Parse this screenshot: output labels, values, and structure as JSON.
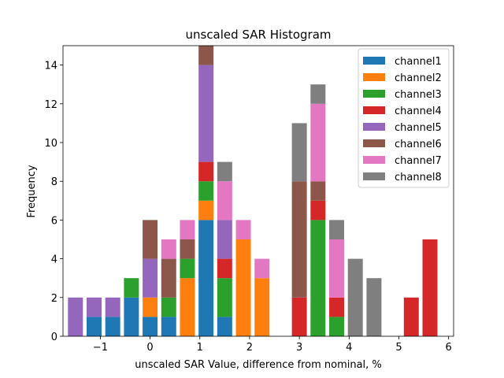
{
  "chart_data": {
    "type": "bar",
    "stacked": true,
    "title": "unscaled SAR Histogram",
    "xlabel": "unscaled SAR Value, difference from nominal, %",
    "ylabel": "Frequency",
    "xlim": [
      -1.75,
      6.1
    ],
    "ylim": [
      0,
      15
    ],
    "xticks": [
      -1,
      0,
      1,
      2,
      3,
      4,
      5,
      6
    ],
    "xtick_labels": [
      "−1",
      "0",
      "1",
      "2",
      "3",
      "4",
      "5",
      "6"
    ],
    "yticks": [
      0,
      2,
      4,
      6,
      8,
      10,
      12,
      14
    ],
    "bar_width": 0.3,
    "legend_position": "top-right",
    "x": [
      -1.5,
      -1.125,
      -0.75,
      -0.375,
      0,
      0.375,
      0.75,
      1.125,
      1.5,
      1.875,
      2.25,
      2.625,
      3,
      3.375,
      3.75,
      4.125,
      4.5,
      4.875,
      5.25,
      5.625
    ],
    "series": [
      {
        "name": "channel1",
        "color": "#1f77b4",
        "values": [
          0,
          1,
          1,
          2,
          1,
          1,
          0,
          6,
          1,
          0,
          0,
          0,
          0,
          0,
          0,
          0,
          0,
          0,
          0,
          0
        ]
      },
      {
        "name": "channel2",
        "color": "#ff7f0e",
        "values": [
          0,
          0,
          0,
          0,
          1,
          0,
          3,
          1,
          0,
          5,
          3,
          0,
          0,
          0,
          0,
          0,
          0,
          0,
          0,
          0
        ]
      },
      {
        "name": "channel3",
        "color": "#2ca02c",
        "values": [
          0,
          0,
          0,
          1,
          0,
          1,
          1,
          1,
          2,
          0,
          0,
          0,
          0,
          6,
          1,
          0,
          0,
          0,
          0,
          0
        ]
      },
      {
        "name": "channel4",
        "color": "#d62728",
        "values": [
          0,
          0,
          0,
          0,
          0,
          0,
          0,
          1,
          1,
          0,
          0,
          0,
          2,
          1,
          1,
          0,
          0,
          0,
          2,
          5
        ]
      },
      {
        "name": "channel5",
        "color": "#9467bd",
        "values": [
          2,
          1,
          1,
          0,
          2,
          0,
          0,
          5,
          2,
          0,
          0,
          0,
          0,
          0,
          0,
          0,
          0,
          0,
          0,
          0
        ]
      },
      {
        "name": "channel6",
        "color": "#8c564b",
        "values": [
          0,
          0,
          0,
          0,
          2,
          2,
          1,
          1,
          0,
          0,
          0,
          0,
          6,
          1,
          0,
          0,
          0,
          0,
          0,
          0
        ]
      },
      {
        "name": "channel7",
        "color": "#e377c2",
        "values": [
          0,
          0,
          0,
          0,
          0,
          1,
          1,
          0,
          2,
          1,
          1,
          0,
          0,
          4,
          3,
          0,
          0,
          0,
          0,
          0
        ]
      },
      {
        "name": "channel8",
        "color": "#7f7f7f",
        "values": [
          0,
          0,
          0,
          0,
          0,
          0,
          0,
          0,
          1,
          0,
          0,
          0,
          3,
          1,
          1,
          4,
          3,
          0,
          0,
          0
        ]
      }
    ]
  }
}
